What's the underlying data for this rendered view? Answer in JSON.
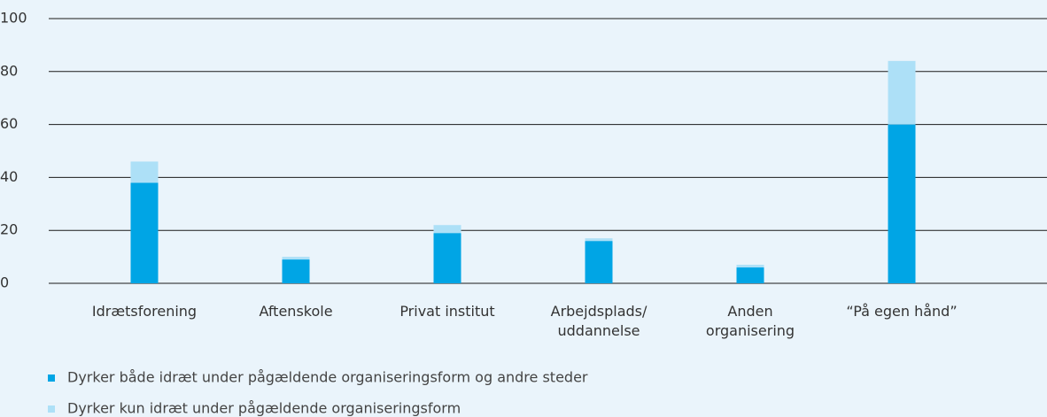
{
  "chart_data": {
    "type": "stacked_bar",
    "categories": [
      [
        "Idrætsforening"
      ],
      [
        "Aftenskole"
      ],
      [
        "Privat institut"
      ],
      [
        "Arbejdsplads/",
        "uddannelse"
      ],
      [
        "Anden",
        "organisering"
      ],
      [
        "“På egen hånd”"
      ]
    ],
    "series": [
      {
        "name": "Dyrker både idræt under pågældende organiseringsform og andre steder",
        "color": "#00a5e5",
        "values": [
          38,
          9,
          19,
          16,
          6,
          60
        ]
      },
      {
        "name": "Dyrker kun idræt under pågældende organiseringsform",
        "color": "#ade0f7",
        "values": [
          8,
          1,
          3,
          1,
          1,
          24
        ]
      }
    ],
    "ylim": [
      0,
      100
    ],
    "yticks": [
      0,
      20,
      40,
      60,
      80,
      100
    ],
    "grid": true,
    "legend": "bottom-left"
  }
}
